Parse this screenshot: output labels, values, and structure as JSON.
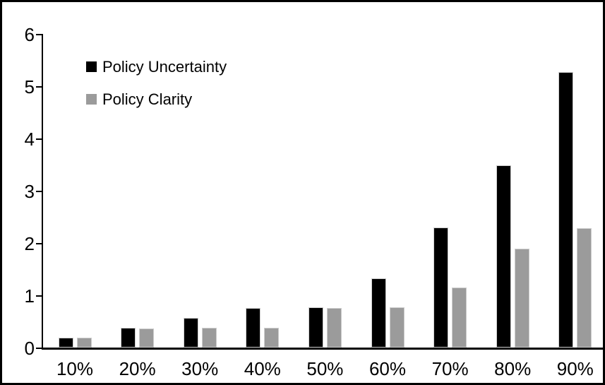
{
  "frame": {
    "background": "#ffffff",
    "border_color": "#000000"
  },
  "chart_data": {
    "type": "bar",
    "title": "",
    "xlabel": "",
    "ylabel": "",
    "categories": [
      "10%",
      "20%",
      "30%",
      "40%",
      "50%",
      "60%",
      "70%",
      "80%",
      "90%"
    ],
    "series": [
      {
        "name": "Policy Uncertainty",
        "color": "#000000",
        "values": [
          0.2,
          0.39,
          0.58,
          0.77,
          0.78,
          1.34,
          2.31,
          3.5,
          5.29
        ]
      },
      {
        "name": "Policy Clarity",
        "color": "#9b9b9b",
        "values": [
          0.2,
          0.38,
          0.39,
          0.39,
          0.77,
          0.78,
          1.16,
          1.91,
          2.3
        ]
      }
    ],
    "ylim": [
      0,
      6
    ],
    "yticks": [
      0,
      1,
      2,
      3,
      4,
      5,
      6
    ],
    "grid": false,
    "legend_position": "top-left-inside",
    "axis_color": "#000000"
  }
}
